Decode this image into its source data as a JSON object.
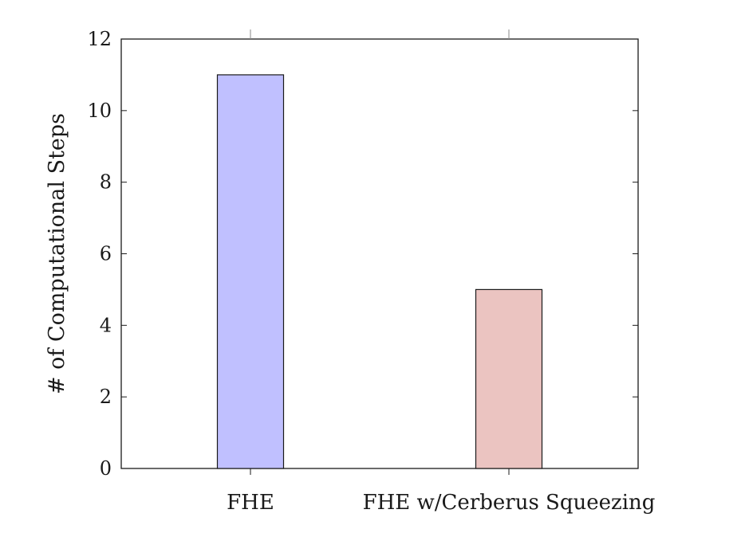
{
  "chart_data": {
    "type": "bar",
    "title": "",
    "xlabel": "",
    "ylabel": "# of Computational Steps",
    "categories": [
      "FHE",
      "FHE w/Cerberus Squeezing"
    ],
    "values": [
      11,
      5
    ],
    "colors": [
      "#c0c0ff",
      "#ebc4c1"
    ],
    "bar_stroke": "#1a1a1a",
    "ylim": [
      0,
      12
    ],
    "yticks": [
      0,
      2,
      4,
      6,
      8,
      10,
      12
    ],
    "grid": false,
    "legend": "none"
  }
}
